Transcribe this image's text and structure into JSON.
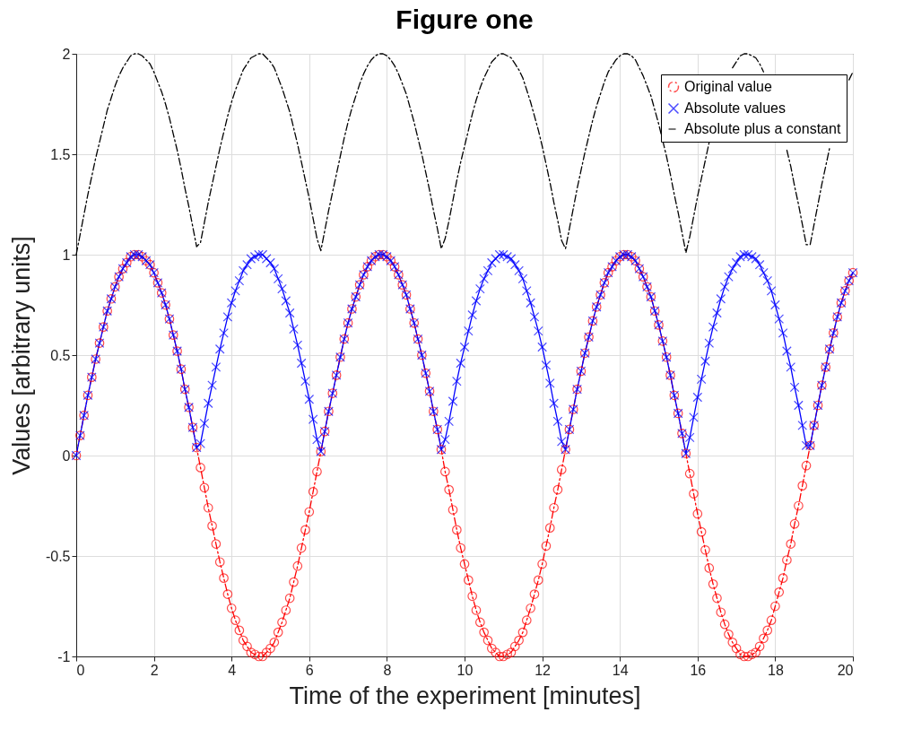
{
  "chart_data": {
    "type": "line",
    "title": "Figure one",
    "xlabel": "Time of the experiment [minutes]",
    "ylabel": "Values  [arbitrary units]",
    "x": [
      0,
      0.1,
      0.2,
      0.3,
      0.4,
      0.5,
      0.6,
      0.7,
      0.8,
      0.9,
      1,
      1.1,
      1.2,
      1.3,
      1.4,
      1.5,
      1.6,
      1.7,
      1.8,
      1.9,
      2,
      2.1,
      2.2,
      2.3,
      2.4,
      2.5,
      2.6,
      2.7,
      2.8,
      2.9,
      3,
      3.1,
      3.2,
      3.3,
      3.4,
      3.5,
      3.6,
      3.7,
      3.8,
      3.9,
      4,
      4.1,
      4.2,
      4.3,
      4.4,
      4.5,
      4.6,
      4.7,
      4.8,
      4.9,
      5,
      5.1,
      5.2,
      5.3,
      5.4,
      5.5,
      5.6,
      5.7,
      5.8,
      5.9,
      6,
      6.1,
      6.2,
      6.3,
      6.4,
      6.5,
      6.6,
      6.7,
      6.8,
      6.9,
      7,
      7.1,
      7.2,
      7.3,
      7.4,
      7.5,
      7.6,
      7.7,
      7.8,
      7.9,
      8,
      8.1,
      8.2,
      8.3,
      8.4,
      8.5,
      8.6,
      8.7,
      8.8,
      8.9,
      9,
      9.1,
      9.2,
      9.3,
      9.4,
      9.5,
      9.6,
      9.7,
      9.8,
      9.9,
      10,
      10.1,
      10.2,
      10.3,
      10.4,
      10.5,
      10.6,
      10.7,
      10.8,
      10.9,
      11,
      11.1,
      11.2,
      11.3,
      11.4,
      11.5,
      11.6,
      11.7,
      11.8,
      11.9,
      12,
      12.1,
      12.2,
      12.3,
      12.4,
      12.5,
      12.6,
      12.7,
      12.8,
      12.9,
      13,
      13.1,
      13.2,
      13.3,
      13.4,
      13.5,
      13.6,
      13.7,
      13.8,
      13.9,
      14,
      14.1,
      14.2,
      14.3,
      14.4,
      14.5,
      14.6,
      14.7,
      14.8,
      14.9,
      15,
      15.1,
      15.2,
      15.3,
      15.4,
      15.5,
      15.6,
      15.7,
      15.8,
      15.9,
      16,
      16.1,
      16.2,
      16.3,
      16.4,
      16.5,
      16.6,
      16.7,
      16.8,
      16.9,
      17,
      17.1,
      17.2,
      17.3,
      17.4,
      17.5,
      17.6,
      17.7,
      17.8,
      17.9,
      18,
      18.1,
      18.2,
      18.3,
      18.4,
      18.5,
      18.6,
      18.7,
      18.8,
      18.9,
      19,
      19.1,
      19.2,
      19.3,
      19.4,
      19.5,
      19.6,
      19.7,
      19.8,
      19.9,
      20
    ],
    "series": [
      {
        "name": "Original value",
        "color": "#ff0000",
        "marker": "circle",
        "line_style": "dashed",
        "values": [
          0,
          0.1,
          0.2,
          0.3,
          0.39,
          0.48,
          0.56,
          0.64,
          0.72,
          0.78,
          0.84,
          0.89,
          0.93,
          0.96,
          0.99,
          1.0,
          1.0,
          0.99,
          0.97,
          0.95,
          0.91,
          0.86,
          0.81,
          0.75,
          0.68,
          0.6,
          0.52,
          0.43,
          0.33,
          0.24,
          0.14,
          0.04,
          -0.06,
          -0.16,
          -0.26,
          -0.35,
          -0.44,
          -0.53,
          -0.61,
          -0.69,
          -0.76,
          -0.82,
          -0.87,
          -0.92,
          -0.95,
          -0.98,
          -0.99,
          -1.0,
          -1.0,
          -0.98,
          -0.96,
          -0.93,
          -0.88,
          -0.83,
          -0.77,
          -0.71,
          -0.63,
          -0.55,
          -0.46,
          -0.37,
          -0.28,
          -0.18,
          -0.08,
          0.02,
          0.12,
          0.22,
          0.31,
          0.4,
          0.49,
          0.58,
          0.66,
          0.73,
          0.79,
          0.85,
          0.9,
          0.94,
          0.97,
          0.99,
          1.0,
          1.0,
          0.99,
          0.97,
          0.94,
          0.9,
          0.85,
          0.8,
          0.73,
          0.66,
          0.58,
          0.5,
          0.41,
          0.32,
          0.22,
          0.13,
          0.03,
          -0.08,
          -0.17,
          -0.27,
          -0.37,
          -0.46,
          -0.54,
          -0.62,
          -0.7,
          -0.77,
          -0.83,
          -0.88,
          -0.92,
          -0.96,
          -0.98,
          -1.0,
          -1.0,
          -0.99,
          -0.98,
          -0.95,
          -0.92,
          -0.88,
          -0.82,
          -0.76,
          -0.69,
          -0.62,
          -0.54,
          -0.45,
          -0.36,
          -0.26,
          -0.17,
          -0.07,
          0.03,
          0.13,
          0.23,
          0.33,
          0.42,
          0.51,
          0.59,
          0.67,
          0.74,
          0.8,
          0.86,
          0.91,
          0.94,
          0.97,
          0.99,
          1.0,
          1.0,
          0.99,
          0.97,
          0.93,
          0.89,
          0.84,
          0.79,
          0.72,
          0.65,
          0.57,
          0.49,
          0.4,
          0.3,
          0.21,
          0.11,
          0.01,
          -0.09,
          -0.19,
          -0.29,
          -0.38,
          -0.47,
          -0.56,
          -0.64,
          -0.71,
          -0.78,
          -0.84,
          -0.89,
          -0.93,
          -0.96,
          -0.99,
          -1.0,
          -1.0,
          -0.99,
          -0.98,
          -0.95,
          -0.91,
          -0.87,
          -0.82,
          -0.75,
          -0.68,
          -0.61,
          -0.52,
          -0.44,
          -0.34,
          -0.25,
          -0.15,
          -0.05,
          0.05,
          0.15,
          0.25,
          0.35,
          0.44,
          0.53,
          0.61,
          0.69,
          0.76,
          0.82,
          0.87,
          0.91
        ]
      },
      {
        "name": "Absolute values",
        "color": "#0000ff",
        "marker": "cross",
        "line_style": "solid",
        "values": [
          0,
          0.1,
          0.2,
          0.3,
          0.39,
          0.48,
          0.56,
          0.64,
          0.72,
          0.78,
          0.84,
          0.89,
          0.93,
          0.96,
          0.99,
          1.0,
          1.0,
          0.99,
          0.97,
          0.95,
          0.91,
          0.86,
          0.81,
          0.75,
          0.68,
          0.6,
          0.52,
          0.43,
          0.33,
          0.24,
          0.14,
          0.04,
          0.06,
          0.16,
          0.26,
          0.35,
          0.44,
          0.53,
          0.61,
          0.69,
          0.76,
          0.82,
          0.87,
          0.92,
          0.95,
          0.98,
          0.99,
          1.0,
          1.0,
          0.98,
          0.96,
          0.93,
          0.88,
          0.83,
          0.77,
          0.71,
          0.63,
          0.55,
          0.46,
          0.37,
          0.28,
          0.18,
          0.08,
          0.02,
          0.12,
          0.22,
          0.31,
          0.4,
          0.49,
          0.58,
          0.66,
          0.73,
          0.79,
          0.85,
          0.9,
          0.94,
          0.97,
          0.99,
          1.0,
          1.0,
          0.99,
          0.97,
          0.94,
          0.9,
          0.85,
          0.8,
          0.73,
          0.66,
          0.58,
          0.5,
          0.41,
          0.32,
          0.22,
          0.13,
          0.03,
          0.08,
          0.17,
          0.27,
          0.37,
          0.46,
          0.54,
          0.62,
          0.7,
          0.77,
          0.83,
          0.88,
          0.92,
          0.96,
          0.98,
          1.0,
          1.0,
          0.99,
          0.98,
          0.95,
          0.92,
          0.88,
          0.82,
          0.76,
          0.69,
          0.62,
          0.54,
          0.45,
          0.36,
          0.26,
          0.17,
          0.07,
          0.03,
          0.13,
          0.23,
          0.33,
          0.42,
          0.51,
          0.59,
          0.67,
          0.74,
          0.8,
          0.86,
          0.91,
          0.94,
          0.97,
          0.99,
          1.0,
          1.0,
          0.99,
          0.97,
          0.93,
          0.89,
          0.84,
          0.79,
          0.72,
          0.65,
          0.57,
          0.49,
          0.4,
          0.3,
          0.21,
          0.11,
          0.01,
          0.09,
          0.19,
          0.29,
          0.38,
          0.47,
          0.56,
          0.64,
          0.71,
          0.78,
          0.84,
          0.89,
          0.93,
          0.96,
          0.99,
          1.0,
          1.0,
          0.99,
          0.98,
          0.95,
          0.91,
          0.87,
          0.82,
          0.75,
          0.68,
          0.61,
          0.52,
          0.44,
          0.34,
          0.25,
          0.15,
          0.05,
          0.05,
          0.15,
          0.25,
          0.35,
          0.44,
          0.53,
          0.61,
          0.69,
          0.76,
          0.82,
          0.87,
          0.91
        ]
      },
      {
        "name": "Absolute plus a constant",
        "color": "#000000",
        "marker": "none",
        "line_style": "dashed",
        "values": [
          1,
          1.1,
          1.2,
          1.3,
          1.39,
          1.48,
          1.56,
          1.64,
          1.72,
          1.78,
          1.84,
          1.89,
          1.93,
          1.96,
          1.99,
          2.0,
          2.0,
          1.99,
          1.97,
          1.95,
          1.91,
          1.86,
          1.81,
          1.75,
          1.68,
          1.6,
          1.52,
          1.43,
          1.33,
          1.24,
          1.14,
          1.04,
          1.06,
          1.16,
          1.26,
          1.35,
          1.44,
          1.53,
          1.61,
          1.69,
          1.76,
          1.82,
          1.87,
          1.92,
          1.95,
          1.98,
          1.99,
          2.0,
          2.0,
          1.98,
          1.96,
          1.93,
          1.88,
          1.83,
          1.77,
          1.71,
          1.63,
          1.55,
          1.46,
          1.37,
          1.28,
          1.18,
          1.08,
          1.02,
          1.12,
          1.22,
          1.31,
          1.4,
          1.49,
          1.58,
          1.66,
          1.73,
          1.79,
          1.85,
          1.9,
          1.94,
          1.97,
          1.99,
          2.0,
          2.0,
          1.99,
          1.97,
          1.94,
          1.9,
          1.85,
          1.8,
          1.73,
          1.66,
          1.58,
          1.5,
          1.41,
          1.32,
          1.22,
          1.13,
          1.03,
          1.08,
          1.17,
          1.27,
          1.37,
          1.46,
          1.54,
          1.62,
          1.7,
          1.77,
          1.83,
          1.88,
          1.92,
          1.96,
          1.98,
          2.0,
          2.0,
          1.99,
          1.98,
          1.95,
          1.92,
          1.88,
          1.82,
          1.76,
          1.69,
          1.62,
          1.54,
          1.45,
          1.36,
          1.26,
          1.17,
          1.07,
          1.03,
          1.13,
          1.23,
          1.33,
          1.42,
          1.51,
          1.59,
          1.67,
          1.74,
          1.8,
          1.86,
          1.91,
          1.94,
          1.97,
          1.99,
          2.0,
          2.0,
          1.99,
          1.97,
          1.93,
          1.89,
          1.84,
          1.79,
          1.72,
          1.65,
          1.57,
          1.49,
          1.4,
          1.3,
          1.21,
          1.11,
          1.01,
          1.09,
          1.19,
          1.29,
          1.38,
          1.47,
          1.56,
          null,
          null,
          null,
          null,
          null,
          1.93,
          1.96,
          1.99,
          2.0,
          2.0,
          1.99,
          1.98,
          1.95,
          1.91,
          null,
          null,
          null,
          null,
          null,
          1.52,
          1.44,
          1.34,
          1.25,
          1.15,
          1.05,
          1.05,
          1.15,
          1.25,
          1.35,
          1.44,
          1.53,
          null,
          null,
          null,
          null,
          1.87,
          1.91
        ]
      }
    ],
    "xlim": [
      0,
      20
    ],
    "xticks": [
      0,
      2,
      4,
      6,
      8,
      10,
      12,
      14,
      16,
      18,
      20
    ],
    "ylim": [
      -1,
      2
    ],
    "yticks": [
      -1,
      -0.5,
      0,
      0.5,
      1,
      1.5,
      2
    ],
    "grid": true,
    "legend": "top right"
  }
}
